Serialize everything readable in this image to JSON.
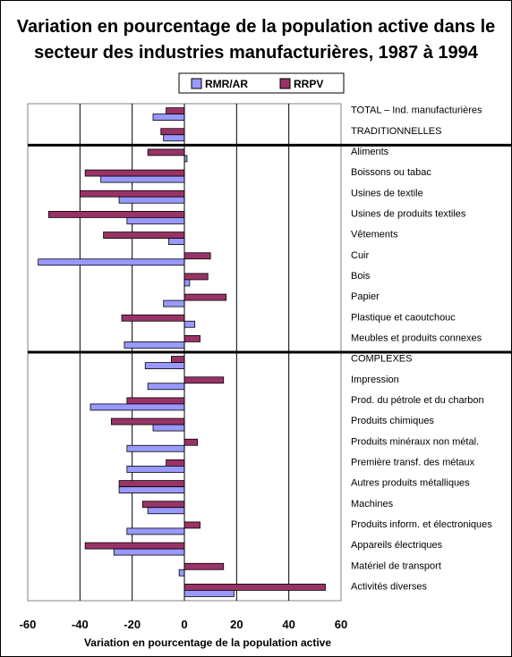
{
  "chart_data": {
    "type": "bar",
    "orientation": "horizontal",
    "title": "Variation en pourcentage de la population active dans le secteur des industries manufacturières, 1987 à 1994",
    "xlabel": "Variation en pourcentage de la population active",
    "ylabel": "",
    "xlim": [
      -60,
      60
    ],
    "xticks": [
      -60,
      -40,
      -20,
      0,
      20,
      40,
      60
    ],
    "grid": "vertical",
    "legend_position": "top",
    "categories": [
      "TOTAL – Ind. manufacturières",
      "TRADITIONNELLES",
      "Aliments",
      "Boissons ou tabac",
      "Usines de textile",
      "Usines de produits textiles",
      "Vêtements",
      "Cuir",
      "Bois",
      "Papier",
      "Plastique et caoutchouc",
      "Meubles et produits connexes",
      "COMPLEXES",
      "Impression",
      "Prod. du pétrole et du charbon",
      "Produits chimiques",
      "Produits minéraux non métal.",
      "Première transf. des métaux",
      "Autres produits métalliques",
      "Machines",
      "Produits inform. et électroniques",
      "Appareils électriques",
      "Matériel de transport",
      "Activités diverses"
    ],
    "series": [
      {
        "name": "RRPV",
        "color": "#993366",
        "values": [
          -7,
          -9,
          -14,
          -38,
          -40,
          -52,
          -31,
          10,
          9,
          16,
          -24,
          6,
          -5,
          15,
          -22,
          -28,
          5,
          -7,
          -25,
          -16,
          6,
          -38,
          15,
          54
        ]
      },
      {
        "name": "RMR/AR",
        "color": "#9999ff",
        "values": [
          -12,
          -8,
          1,
          -32,
          -25,
          -22,
          -6,
          -56,
          2,
          -8,
          4,
          -23,
          -15,
          -14,
          -36,
          -12,
          -22,
          -22,
          -25,
          -14,
          -22,
          -27,
          -2,
          19
        ]
      }
    ],
    "group_separators_after": [
      1,
      11
    ]
  }
}
